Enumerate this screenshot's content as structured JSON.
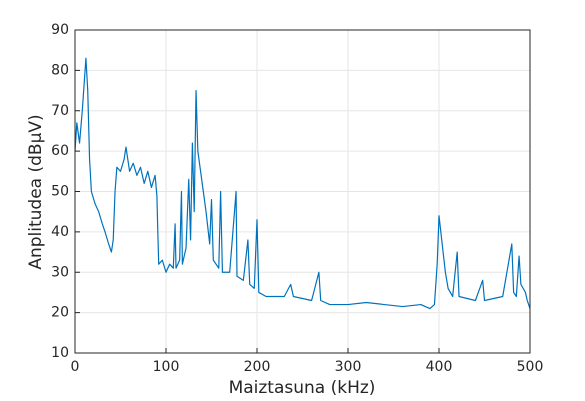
{
  "chart_data": {
    "type": "line",
    "xlabel": "Maiztasuna (kHz)",
    "ylabel": "Anplitudea (dBμV)",
    "x": [
      0,
      2,
      5,
      8,
      12,
      14,
      16,
      18,
      22,
      26,
      30,
      33,
      37,
      40,
      42,
      44,
      46,
      50,
      54,
      56,
      60,
      64,
      68,
      72,
      76,
      80,
      84,
      88,
      90,
      91,
      92,
      96,
      100,
      104,
      108,
      110,
      111,
      115,
      117,
      118,
      122,
      125,
      127,
      129,
      131,
      133,
      135,
      138,
      141,
      144,
      148,
      150,
      152,
      158,
      160,
      162,
      170,
      177,
      178,
      185,
      190,
      192,
      197,
      200,
      202,
      210,
      230,
      237,
      240,
      260,
      268,
      270,
      280,
      300,
      320,
      340,
      360,
      380,
      390,
      395,
      398,
      400,
      403,
      407,
      410,
      415,
      420,
      422,
      440,
      448,
      450,
      470,
      480,
      482,
      485,
      488,
      490,
      495,
      497,
      500
    ],
    "values": [
      60,
      67,
      62,
      70,
      83,
      75,
      58,
      50,
      47,
      45,
      42,
      40,
      37,
      35,
      38,
      50,
      56,
      55,
      58,
      61,
      55,
      57,
      54,
      56,
      52,
      55,
      51,
      54,
      49,
      40,
      32,
      33,
      30,
      32,
      31,
      42,
      31,
      33,
      50,
      32,
      36,
      53,
      38,
      62,
      45,
      75,
      60,
      55,
      50,
      45,
      37,
      48,
      33,
      31,
      50,
      30,
      30,
      50,
      29,
      28,
      38,
      27,
      26,
      43,
      25,
      24,
      24,
      27,
      24,
      23,
      30,
      23,
      22,
      22,
      22.5,
      22,
      21.5,
      22,
      21,
      22,
      32,
      44,
      38,
      30,
      26,
      24,
      35,
      24,
      23,
      28,
      23,
      24,
      37,
      25,
      24,
      34,
      27,
      25,
      23,
      21
    ],
    "color": "#0072bd",
    "xlim": [
      0,
      500
    ],
    "xticks": [
      0,
      100,
      200,
      300,
      400,
      500
    ],
    "ylim": [
      10,
      90
    ],
    "yticks": [
      10,
      20,
      30,
      40,
      50,
      60,
      70,
      80,
      90
    ],
    "grid": true
  }
}
